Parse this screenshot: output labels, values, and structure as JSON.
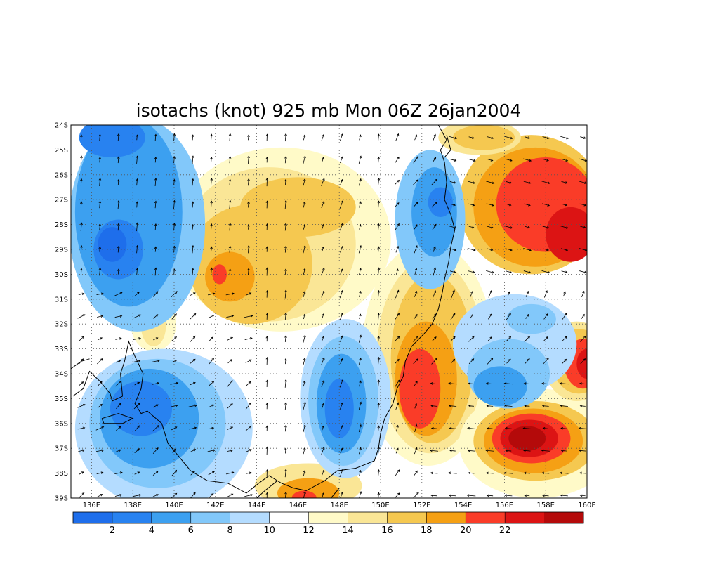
{
  "title": "isotachs (knot) 925 mb Mon 06Z 26jan2004",
  "map": {
    "lon_range": [
      135,
      160
    ],
    "lat_range": [
      -39,
      -24
    ],
    "x_ticks": [
      {
        "value": 136,
        "label": "136E"
      },
      {
        "value": 138,
        "label": "138E"
      },
      {
        "value": 140,
        "label": "140E"
      },
      {
        "value": 142,
        "label": "142E"
      },
      {
        "value": 144,
        "label": "144E"
      },
      {
        "value": 146,
        "label": "146E"
      },
      {
        "value": 148,
        "label": "148E"
      },
      {
        "value": 150,
        "label": "150E"
      },
      {
        "value": 152,
        "label": "152E"
      },
      {
        "value": 154,
        "label": "154E"
      },
      {
        "value": 156,
        "label": "156E"
      },
      {
        "value": 158,
        "label": "158E"
      },
      {
        "value": 160,
        "label": "160E"
      }
    ],
    "y_ticks": [
      {
        "value": -24,
        "label": "24S"
      },
      {
        "value": -25,
        "label": "25S"
      },
      {
        "value": -26,
        "label": "26S"
      },
      {
        "value": -27,
        "label": "27S"
      },
      {
        "value": -28,
        "label": "28S"
      },
      {
        "value": -29,
        "label": "29S"
      },
      {
        "value": -30,
        "label": "30S"
      },
      {
        "value": -31,
        "label": "31S"
      },
      {
        "value": -32,
        "label": "32S"
      },
      {
        "value": -33,
        "label": "33S"
      },
      {
        "value": -34,
        "label": "34S"
      },
      {
        "value": -35,
        "label": "35S"
      },
      {
        "value": -36,
        "label": "36S"
      },
      {
        "value": -37,
        "label": "37S"
      },
      {
        "value": -38,
        "label": "38S"
      },
      {
        "value": -39,
        "label": "39S"
      }
    ],
    "grid": "dotted",
    "coastline_color": "#000000"
  },
  "colorbar": {
    "colors": [
      "#1e6eeb",
      "#2882f0",
      "#3ca0f0",
      "#82c8fa",
      "#b4dcff",
      "#ffffff",
      "#fffac8",
      "#fae696",
      "#f5c850",
      "#f5a014",
      "#fa3c28",
      "#dc1414",
      "#b40a0a"
    ],
    "labels": [
      {
        "value": 2,
        "label": "2"
      },
      {
        "value": 4,
        "label": "4"
      },
      {
        "value": 6,
        "label": "6"
      },
      {
        "value": 8,
        "label": "8"
      },
      {
        "value": 10,
        "label": "10"
      },
      {
        "value": 12,
        "label": "12"
      },
      {
        "value": 14,
        "label": "14"
      },
      {
        "value": 16,
        "label": "16"
      },
      {
        "value": 18,
        "label": "18"
      },
      {
        "value": 20,
        "label": "20"
      },
      {
        "value": 22,
        "label": "22"
      }
    ]
  },
  "regions": [
    {
      "name": "strong-ne",
      "color": "#f5c850",
      "lon": 157.3,
      "lat": -27.2,
      "rlon": 3.5,
      "rlat": 2.8
    },
    {
      "name": "strong-ne",
      "color": "#f5a014",
      "lon": 157.5,
      "lat": -27.3,
      "rlon": 3.0,
      "rlat": 2.4
    },
    {
      "name": "strong-ne",
      "color": "#fa3c28",
      "lon": 158.0,
      "lat": -27.2,
      "rlon": 2.4,
      "rlat": 1.9
    },
    {
      "name": "strong-ne",
      "color": "#dc1414",
      "lon": 159.2,
      "lat": -28.4,
      "rlon": 1.2,
      "rlat": 1.1
    },
    {
      "name": "top-strip",
      "color": "#fae696",
      "lon": 154.8,
      "lat": -24.5,
      "rlon": 2.0,
      "rlat": 0.7
    },
    {
      "name": "top-strip",
      "color": "#f5c850",
      "lon": 155.0,
      "lat": -24.5,
      "rlon": 1.5,
      "rlat": 0.5
    },
    {
      "name": "central-yellow",
      "color": "#fffac8",
      "lon": 145.2,
      "lat": -28.6,
      "rlon": 5.3,
      "rlat": 3.7
    },
    {
      "name": "central-yellow",
      "color": "#fae696",
      "lon": 144.6,
      "lat": -28.8,
      "rlon": 4.2,
      "rlat": 3.1
    },
    {
      "name": "central-yellow",
      "color": "#f5c850",
      "lon": 143.7,
      "lat": -29.6,
      "rlon": 3.0,
      "rlat": 2.4
    },
    {
      "name": "central-yellow",
      "color": "#f5c850",
      "lon": 146.0,
      "lat": -27.3,
      "rlon": 2.8,
      "rlat": 1.2
    },
    {
      "name": "central-yellow",
      "color": "#f5a014",
      "lon": 142.7,
      "lat": -30.1,
      "rlon": 1.2,
      "rlat": 1.0
    },
    {
      "name": "central-yellow",
      "color": "#fa3c28",
      "lon": 142.2,
      "lat": -30.0,
      "rlon": 0.35,
      "rlat": 0.4
    },
    {
      "name": "east-orange",
      "color": "#fffac8",
      "lon": 152.3,
      "lat": -33.2,
      "rlon": 3.2,
      "rlat": 4.5
    },
    {
      "name": "east-orange",
      "color": "#fae696",
      "lon": 152.4,
      "lat": -33.3,
      "rlon": 2.6,
      "rlat": 3.9
    },
    {
      "name": "east-orange",
      "color": "#f5c850",
      "lon": 152.5,
      "lat": -33.4,
      "rlon": 2.0,
      "rlat": 3.4
    },
    {
      "name": "east-orange",
      "color": "#f5a014",
      "lon": 152.2,
      "lat": -34.2,
      "rlon": 1.5,
      "rlat": 2.3
    },
    {
      "name": "east-orange",
      "color": "#fa3c28",
      "lon": 151.9,
      "lat": -34.6,
      "rlon": 1.0,
      "rlat": 1.6
    },
    {
      "name": "se-red",
      "color": "#fffac8",
      "lon": 157.6,
      "lat": -36.8,
      "rlon": 3.8,
      "rlat": 2.2
    },
    {
      "name": "se-red",
      "color": "#f5c850",
      "lon": 157.5,
      "lat": -36.7,
      "rlon": 3.0,
      "rlat": 1.6
    },
    {
      "name": "se-red",
      "color": "#f5a014",
      "lon": 157.4,
      "lat": -36.7,
      "rlon": 2.4,
      "rlat": 1.3
    },
    {
      "name": "se-red",
      "color": "#fa3c28",
      "lon": 157.3,
      "lat": -36.6,
      "rlon": 1.9,
      "rlat": 1.0
    },
    {
      "name": "se-red",
      "color": "#dc1414",
      "lon": 157.2,
      "lat": -36.6,
      "rlon": 1.4,
      "rlat": 0.75
    },
    {
      "name": "se-red",
      "color": "#b40a0a",
      "lon": 157.1,
      "lat": -36.6,
      "rlon": 0.9,
      "rlat": 0.5
    },
    {
      "name": "e-red",
      "color": "#fae696",
      "lon": 159.5,
      "lat": -33.5,
      "rlon": 1.6,
      "rlat": 1.6
    },
    {
      "name": "e-red",
      "color": "#f5c850",
      "lon": 159.6,
      "lat": -33.5,
      "rlon": 1.3,
      "rlat": 1.3
    },
    {
      "name": "e-red",
      "color": "#fa3c28",
      "lon": 159.8,
      "lat": -33.6,
      "rlon": 0.9,
      "rlat": 1.0
    },
    {
      "name": "e-red",
      "color": "#dc1414",
      "lon": 160.0,
      "lat": -33.6,
      "rlon": 0.5,
      "rlat": 0.6
    },
    {
      "name": "west-yellow",
      "color": "#fffac8",
      "lon": 139.0,
      "lat": -32.0,
      "rlon": 1.1,
      "rlat": 1.1
    },
    {
      "name": "west-yellow",
      "color": "#fae696",
      "lon": 139.0,
      "lat": -32.1,
      "rlon": 0.6,
      "rlat": 0.8
    },
    {
      "name": "bottom-orange",
      "color": "#fae696",
      "lon": 146.5,
      "lat": -38.5,
      "rlon": 2.6,
      "rlat": 0.9
    },
    {
      "name": "bottom-orange",
      "color": "#f5a014",
      "lon": 146.5,
      "lat": -38.8,
      "rlon": 1.5,
      "rlat": 0.6
    },
    {
      "name": "bottom-orange",
      "color": "#fa3c28",
      "lon": 146.3,
      "lat": -39.0,
      "rlon": 0.6,
      "rlat": 0.3
    },
    {
      "name": "nw-blue",
      "color": "#82c8fa",
      "lon": 138.2,
      "lat": -28.0,
      "rlon": 3.3,
      "rlat": 4.3
    },
    {
      "name": "nw-blue",
      "color": "#3ca0f0",
      "lon": 137.8,
      "lat": -27.5,
      "rlon": 2.6,
      "rlat": 3.8
    },
    {
      "name": "nw-blue",
      "color": "#2882f0",
      "lon": 137.3,
      "lat": -29.0,
      "rlon": 1.2,
      "rlat": 1.2
    },
    {
      "name": "nw-blue",
      "color": "#1e6eeb",
      "lon": 137.0,
      "lat": -28.8,
      "rlon": 0.7,
      "rlat": 0.7
    },
    {
      "name": "nw-blue",
      "color": "#2882f0",
      "lon": 137.0,
      "lat": -24.5,
      "rlon": 1.6,
      "rlat": 0.8
    },
    {
      "name": "sw-blue",
      "color": "#b4dcff",
      "lon": 139.5,
      "lat": -36.2,
      "rlon": 4.3,
      "rlat": 3.2
    },
    {
      "name": "sw-blue",
      "color": "#82c8fa",
      "lon": 139.2,
      "lat": -36.0,
      "rlon": 3.3,
      "rlat": 2.6
    },
    {
      "name": "sw-blue",
      "color": "#3ca0f0",
      "lon": 138.8,
      "lat": -35.8,
      "rlon": 2.4,
      "rlat": 2.0
    },
    {
      "name": "sw-blue",
      "color": "#2882f0",
      "lon": 138.4,
      "lat": -35.4,
      "rlon": 1.5,
      "rlat": 1.1
    },
    {
      "name": "c-blue",
      "color": "#b4dcff",
      "lon": 148.3,
      "lat": -35.0,
      "rlon": 2.2,
      "rlat": 3.2
    },
    {
      "name": "c-blue",
      "color": "#82c8fa",
      "lon": 148.2,
      "lat": -35.1,
      "rlon": 1.7,
      "rlat": 2.6
    },
    {
      "name": "c-blue",
      "color": "#3ca0f0",
      "lon": 148.1,
      "lat": -35.2,
      "rlon": 1.2,
      "rlat": 2.0
    },
    {
      "name": "c-blue",
      "color": "#2882f0",
      "lon": 148.0,
      "lat": -35.4,
      "rlon": 0.7,
      "rlat": 1.2
    },
    {
      "name": "ne-blue",
      "color": "#82c8fa",
      "lon": 152.4,
      "lat": -27.8,
      "rlon": 1.7,
      "rlat": 2.8
    },
    {
      "name": "ne-blue",
      "color": "#3ca0f0",
      "lon": 152.6,
      "lat": -27.5,
      "rlon": 1.1,
      "rlat": 1.8
    },
    {
      "name": "ne-blue",
      "color": "#2882f0",
      "lon": 152.9,
      "lat": -27.1,
      "rlon": 0.6,
      "rlat": 0.6
    },
    {
      "name": "e-blue",
      "color": "#b4dcff",
      "lon": 156.5,
      "lat": -32.8,
      "rlon": 3.0,
      "rlat": 2.0
    },
    {
      "name": "e-blue",
      "color": "#82c8fa",
      "lon": 156.2,
      "lat": -34.0,
      "rlon": 2.0,
      "rlat": 1.4
    },
    {
      "name": "e-blue",
      "color": "#3ca0f0",
      "lon": 155.8,
      "lat": -34.5,
      "rlon": 1.3,
      "rlat": 0.8
    },
    {
      "name": "e-blue",
      "color": "#82c8fa",
      "lon": 157.3,
      "lat": -31.8,
      "rlon": 1.2,
      "rlat": 0.6
    }
  ]
}
